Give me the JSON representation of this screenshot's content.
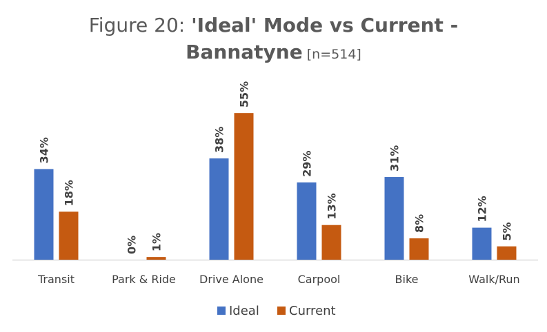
{
  "chart_data": {
    "type": "bar",
    "title_prefix": "Figure 20: ",
    "title_bold_1": "'Ideal' Mode vs Current -",
    "title_bold_2": "Bannatyne",
    "title_suffix": " [n=514]",
    "xlabel": "",
    "ylabel": "",
    "ylim": [
      0,
      60
    ],
    "grid": false,
    "legend_position": "bottom",
    "categories": [
      "Transit",
      "Park & Ride",
      "Drive Alone",
      "Carpool",
      "Bike",
      "Walk/Run"
    ],
    "series": [
      {
        "name": "Ideal",
        "color": "#4472C4",
        "values": [
          34,
          0,
          38,
          29,
          31,
          12
        ],
        "labels": [
          "34%",
          "0%",
          "38%",
          "29%",
          "31%",
          "12%"
        ]
      },
      {
        "name": "Current",
        "color": "#C55A11",
        "values": [
          18,
          1,
          55,
          13,
          8,
          5
        ],
        "labels": [
          "18%",
          "1%",
          "55%",
          "13%",
          "8%",
          "5%"
        ]
      }
    ],
    "axis_color": "#BFBFBF"
  }
}
